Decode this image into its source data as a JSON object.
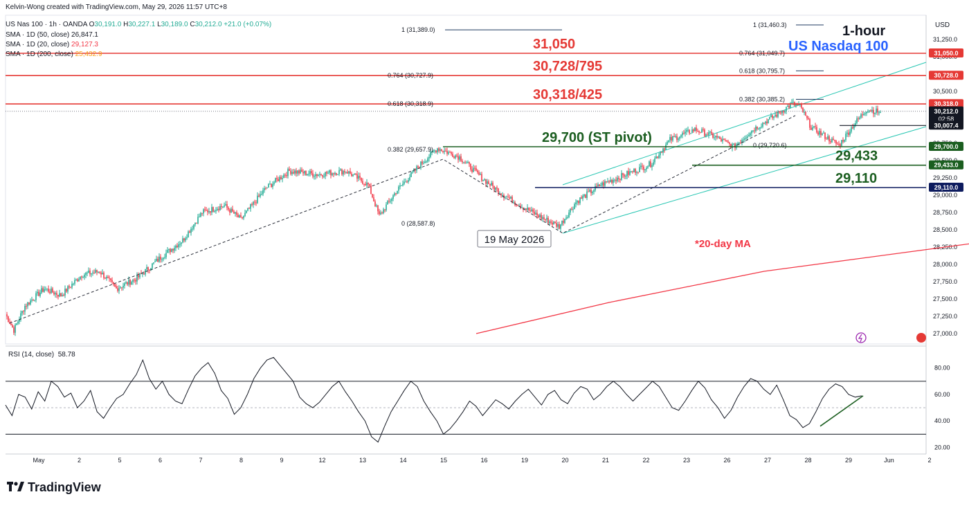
{
  "header": {
    "attribution": "Kelvin-Wong created with TradingView.com, May 29, 2026 11:57 UTC+8",
    "symbol": "US Nas 100 · 1h · OANDA",
    "ohlc": [
      {
        "k": "O",
        "v": "30,191.0"
      },
      {
        "k": "H",
        "v": "30,227.1"
      },
      {
        "k": "L",
        "v": "30,189.0"
      },
      {
        "k": "C",
        "v": "30,212.0"
      },
      {
        "k": "",
        "v": "+21.0 (+0.07%)"
      }
    ],
    "indicators": [
      {
        "label": "SMA · 1D (50, close)",
        "value": "26,847.1",
        "color": "#131722"
      },
      {
        "label": "SMA · 1D (20, close)",
        "value": "29,127.3",
        "color": "#f23645"
      },
      {
        "label": "SMA · 1D (200, close)",
        "value": "25,432.9",
        "color": "#f7a21b"
      }
    ]
  },
  "titles": {
    "timeframe": "1-hour",
    "instrument": "US Nasdaq 100"
  },
  "currency": "USD",
  "footer_brand": "TradingView",
  "colors": {
    "up": "#22ab94",
    "down": "#f23645",
    "ma": "#f23645",
    "resist": "#e53935",
    "support": "#1b5e20",
    "channel": "#26c6b2",
    "fib": "#1e3a5f",
    "title_blue": "#2962ff"
  },
  "chart_data": [
    {
      "type": "candlestick",
      "instrument": "US Nas 100",
      "ylim": [
        26850,
        31600
      ],
      "y_ticks": [
        "31,250.0",
        "31,000.0",
        "30,750.0",
        "30,500.0",
        "30,250.0",
        "30,000.0",
        "29,750.0",
        "29,500.0",
        "29,250.0",
        "29,000.0",
        "28,750.0",
        "28,500.0",
        "28,250.0",
        "28,000.0",
        "27,750.0",
        "27,500.0",
        "27,250.0",
        "27,000.0"
      ],
      "x_ticks": [
        "May",
        "2",
        "5",
        "6",
        "7",
        "8",
        "9",
        "12",
        "13",
        "14",
        "15",
        "16",
        "19",
        "20",
        "21",
        "22",
        "23",
        "26",
        "27",
        "28",
        "29",
        "Jun",
        "2"
      ],
      "path_points": [
        [
          0,
          27280
        ],
        [
          6,
          27050
        ],
        [
          14,
          27400
        ],
        [
          28,
          27650
        ],
        [
          40,
          27550
        ],
        [
          55,
          27850
        ],
        [
          68,
          27900
        ],
        [
          80,
          27650
        ],
        [
          95,
          27800
        ],
        [
          112,
          28100
        ],
        [
          128,
          28350
        ],
        [
          142,
          28750
        ],
        [
          158,
          28850
        ],
        [
          170,
          28650
        ],
        [
          188,
          29100
        ],
        [
          205,
          29350
        ],
        [
          225,
          29300
        ],
        [
          246,
          29350
        ],
        [
          262,
          29150
        ],
        [
          270,
          28700
        ],
        [
          282,
          29050
        ],
        [
          300,
          29450
        ],
        [
          312,
          29680
        ],
        [
          328,
          29550
        ],
        [
          344,
          29250
        ],
        [
          360,
          29000
        ],
        [
          372,
          28850
        ],
        [
          385,
          28700
        ],
        [
          400,
          28550
        ],
        [
          412,
          28900
        ],
        [
          430,
          29150
        ],
        [
          448,
          29300
        ],
        [
          466,
          29450
        ],
        [
          480,
          29800
        ],
        [
          498,
          29950
        ],
        [
          512,
          29850
        ],
        [
          526,
          29700
        ],
        [
          540,
          29950
        ],
        [
          556,
          30150
        ],
        [
          568,
          30320
        ],
        [
          574,
          30280
        ],
        [
          582,
          29980
        ],
        [
          592,
          29850
        ],
        [
          602,
          29720
        ],
        [
          612,
          30000
        ],
        [
          622,
          30240
        ],
        [
          632,
          30200
        ]
      ],
      "ma20": [
        [
          0,
          27000
        ],
        [
          60,
          27450
        ],
        [
          130,
          27900
        ],
        [
          200,
          28200
        ],
        [
          270,
          28500
        ],
        [
          340,
          28850
        ],
        [
          400,
          29110
        ]
      ],
      "levels": [
        {
          "label": "31,050",
          "tag": "31,050.0",
          "value": 31050,
          "kind": "resist"
        },
        {
          "label": "30,728/795",
          "tag": "30,728.0",
          "value": 30728,
          "kind": "resist"
        },
        {
          "label": "30,318/425",
          "tag": "30,318.0",
          "value": 30318,
          "kind": "resist"
        },
        {
          "label": "29,700 (ST pivot)",
          "tag": "29,700.0",
          "value": 29700,
          "kind": "support"
        },
        {
          "label": "29,433",
          "tag": "29,433.0",
          "value": 29433,
          "kind": "support"
        },
        {
          "label": "29,110",
          "tag": "29,110.0",
          "value": 29110,
          "kind": "navy"
        }
      ],
      "current_price": {
        "tag": "30,212.0",
        "countdown": "02:58",
        "value": 30212
      },
      "extra_tag": {
        "tag": "30,007.4",
        "value": 30007
      },
      "fibs": [
        {
          "label": "1 (31,389.0)",
          "value": 31389
        },
        {
          "label": "0.764 (30,727.9)",
          "value": 30728
        },
        {
          "label": "0.618 (30,318.9)",
          "value": 30319
        },
        {
          "label": "0.382 (29,657.9)",
          "value": 29658
        },
        {
          "label": "0 (28,587.8)",
          "value": 28588
        },
        {
          "label": "1 (31,460.3)",
          "value": 31460
        },
        {
          "label": "0.764 (31,049.7)",
          "value": 31050
        },
        {
          "label": "0.618 (30,795.7)",
          "value": 30796
        },
        {
          "label": "0.382 (30,385.2)",
          "value": 30385
        },
        {
          "label": "0 (29,720.6)",
          "value": 29721
        }
      ],
      "annotations": {
        "date_label": "19 May 2026",
        "ma_label": "*20-day MA"
      }
    },
    {
      "type": "line",
      "name": "RSI (14, close)",
      "current": "58.78",
      "ylim": [
        15,
        95
      ],
      "y_ticks": [
        "80.00",
        "60.00",
        "40.00",
        "20.00"
      ],
      "bands": [
        70,
        50,
        30
      ],
      "values": [
        52,
        44,
        60,
        58,
        49,
        62,
        55,
        70,
        66,
        58,
        61,
        50,
        55,
        63,
        47,
        42,
        50,
        57,
        60,
        68,
        75,
        86,
        72,
        64,
        70,
        60,
        55,
        53,
        64,
        74,
        80,
        84,
        76,
        63,
        57,
        45,
        50,
        60,
        72,
        80,
        86,
        88,
        82,
        76,
        70,
        58,
        53,
        50,
        54,
        60,
        66,
        70,
        62,
        55,
        47,
        40,
        28,
        24,
        36,
        47,
        55,
        63,
        70,
        66,
        55,
        47,
        40,
        30,
        34,
        40,
        47,
        55,
        51,
        44,
        50,
        56,
        53,
        49,
        55,
        60,
        64,
        58,
        52,
        60,
        63,
        56,
        53,
        61,
        66,
        64,
        56,
        60,
        66,
        70,
        66,
        60,
        55,
        60,
        65,
        70,
        66,
        58,
        50,
        48,
        55,
        63,
        70,
        65,
        56,
        50,
        42,
        48,
        58,
        66,
        72,
        70,
        64,
        60,
        67,
        56,
        44,
        41,
        35,
        38,
        47,
        57,
        64,
        68,
        66,
        60,
        58,
        59
      ]
    }
  ]
}
